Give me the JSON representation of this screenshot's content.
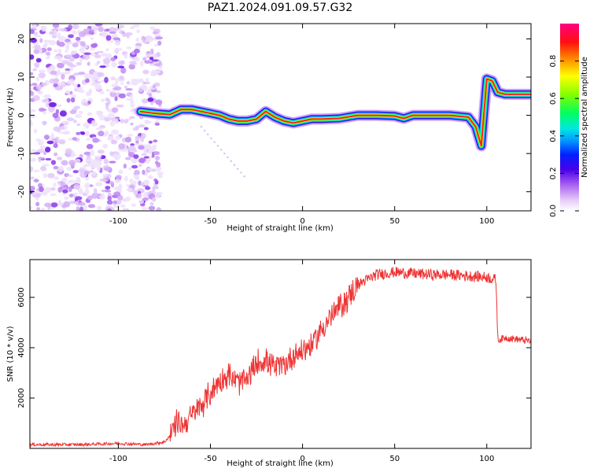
{
  "title": "PAZ1.2024.091.09.57.G32",
  "chart_data": [
    {
      "type": "heatmap",
      "xlabel": "Height of straight line (km)",
      "ylabel": "Frequency (Hz)",
      "xlim": [
        -148,
        124
      ],
      "ylim": [
        -25,
        24
      ],
      "xticks": [
        -100,
        -50,
        0,
        50,
        100
      ],
      "yticks": [
        20,
        10,
        0,
        -10,
        -20
      ],
      "colorbar": {
        "label": "Normalized spectral amplitude",
        "range": [
          0,
          1
        ],
        "ticks": [
          0.0,
          0.2,
          0.4,
          0.6,
          0.8
        ],
        "colormap": [
          "#ffffff",
          "#d9b8f5",
          "#9a4df0",
          "#5a00e0",
          "#0000ff",
          "#00bfff",
          "#00ff80",
          "#40ff00",
          "#ffff00",
          "#ff8000",
          "#ff0000",
          "#ff0080"
        ]
      },
      "ridge": {
        "x": [
          -88,
          -80,
          -72,
          -66,
          -60,
          -55,
          -50,
          -45,
          -40,
          -35,
          -30,
          -25,
          -20,
          -15,
          -10,
          -5,
          0,
          5,
          10,
          20,
          30,
          40,
          50,
          55,
          60,
          70,
          80,
          90,
          94,
          97,
          100,
          103,
          106,
          110,
          115,
          120,
          124
        ],
        "y": [
          1.0,
          0.5,
          0.2,
          1.5,
          1.5,
          1.0,
          0.5,
          0.0,
          -1.0,
          -1.5,
          -1.5,
          -1.0,
          1.0,
          -0.5,
          -1.5,
          -2.0,
          -1.5,
          -1.0,
          -1.0,
          -0.8,
          0.0,
          0.0,
          -0.2,
          -0.8,
          0.0,
          0.0,
          0.0,
          -0.5,
          -3.0,
          -8.0,
          9.5,
          9.0,
          6.0,
          5.5,
          5.5,
          5.5,
          5.5
        ]
      },
      "noise_region": {
        "x": [
          -148,
          -77
        ],
        "y": [
          -25,
          24
        ]
      }
    },
    {
      "type": "line",
      "xlabel": "Height of straight line (km)",
      "ylabel": "SNR (10 * v/v)",
      "xlim": [
        -148,
        124
      ],
      "ylim": [
        0,
        7500
      ],
      "xticks": [
        -100,
        -50,
        0,
        50,
        100
      ],
      "yticks": [
        2000,
        4000,
        6000
      ],
      "color": "#ee3333",
      "x": [
        -148,
        -120,
        -100,
        -85,
        -75,
        -72,
        -68,
        -65,
        -60,
        -55,
        -50,
        -45,
        -40,
        -35,
        -30,
        -25,
        -20,
        -15,
        -10,
        -5,
        0,
        5,
        10,
        15,
        20,
        25,
        30,
        35,
        40,
        50,
        60,
        70,
        80,
        90,
        100,
        105,
        106,
        110,
        115,
        120,
        124
      ],
      "y": [
        150,
        150,
        200,
        150,
        250,
        500,
        1100,
        900,
        1300,
        1700,
        2200,
        2700,
        2900,
        2600,
        2700,
        3400,
        3500,
        3200,
        3300,
        3700,
        3900,
        4100,
        4700,
        5200,
        5600,
        6000,
        6500,
        6700,
        6900,
        7000,
        6950,
        6900,
        6900,
        6850,
        6800,
        6700,
        4300,
        4400,
        4350,
        4300,
        4250
      ]
    }
  ]
}
